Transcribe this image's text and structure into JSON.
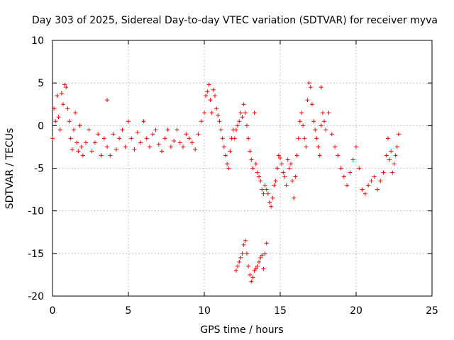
{
  "chart_data": {
    "type": "scatter",
    "title": "Day 303 of 2025, Sidereal Day-to-day VTEC variation (SDTVAR) for receiver myva",
    "xlabel": "GPS time / hours",
    "ylabel": "SDTVAR / TECUs",
    "xlim": [
      0,
      25
    ],
    "ylim": [
      -20,
      10
    ],
    "xticks": [
      0,
      5,
      10,
      15,
      20,
      25
    ],
    "xtick_labels": [
      "0",
      "5",
      "10",
      "15",
      "20",
      "25"
    ],
    "yticks": [
      10,
      5,
      0,
      -5,
      -10,
      -15,
      -20
    ],
    "ytick_labels": [
      "10",
      "5",
      "0",
      "-5",
      "-10",
      "-15",
      "-20"
    ],
    "grid": true,
    "marker": "+",
    "color": "#ff0000",
    "series": [
      {
        "name": "SDTVAR",
        "x": [
          0.0,
          0.1,
          0.2,
          0.3,
          0.4,
          0.5,
          0.6,
          0.7,
          0.8,
          0.9,
          1.0,
          1.1,
          1.2,
          1.3,
          1.4,
          1.5,
          1.6,
          1.7,
          1.8,
          1.9,
          2.0,
          2.2,
          2.4,
          2.6,
          2.8,
          3.0,
          3.2,
          3.4,
          3.6,
          3.8,
          4.0,
          4.2,
          4.4,
          4.6,
          4.8,
          5.0,
          5.2,
          5.4,
          5.6,
          5.8,
          6.0,
          6.2,
          6.4,
          6.6,
          6.8,
          7.0,
          7.2,
          7.4,
          7.6,
          7.8,
          8.0,
          8.2,
          8.4,
          8.6,
          8.8,
          9.0,
          9.2,
          9.4,
          9.6,
          9.8,
          10.0,
          10.1,
          10.2,
          10.3,
          10.4,
          10.5,
          10.6,
          10.7,
          10.8,
          10.9,
          11.0,
          11.1,
          11.2,
          11.3,
          11.4,
          11.5,
          11.6,
          11.7,
          11.8,
          11.9,
          12.0,
          12.1,
          12.2,
          12.3,
          12.4,
          12.5,
          12.6,
          12.7,
          12.8,
          12.9,
          13.0,
          13.1,
          13.2,
          13.3,
          13.4,
          13.5,
          13.6,
          13.7,
          13.8,
          13.9,
          14.0,
          14.1,
          14.2,
          14.3,
          14.4,
          14.5,
          14.6,
          14.7,
          14.8,
          14.9,
          15.0,
          15.1,
          15.2,
          15.3,
          15.4,
          15.5,
          15.6,
          15.7,
          15.8,
          15.9,
          16.0,
          16.1,
          16.2,
          16.3,
          16.4,
          16.5,
          16.6,
          16.7,
          16.8,
          16.9,
          17.0,
          17.1,
          17.2,
          17.3,
          17.4,
          17.5,
          17.6,
          17.7,
          17.8,
          17.9,
          18.0,
          18.2,
          18.4,
          18.6,
          18.8,
          19.0,
          19.2,
          19.4,
          19.6,
          19.8,
          20.0,
          20.2,
          20.4,
          20.6,
          20.8,
          21.0,
          21.2,
          21.4,
          21.6,
          21.8,
          22.0,
          22.1,
          22.2,
          22.3,
          22.4,
          22.5,
          22.6,
          22.7,
          22.8,
          12.1,
          12.2,
          12.3,
          12.4,
          12.5,
          12.6,
          12.7,
          12.8,
          12.9,
          13.0,
          13.1,
          13.2,
          13.3,
          13.4,
          13.5,
          13.6,
          13.7,
          13.8,
          13.9,
          14.0,
          14.1,
          3.6,
          17.7
        ],
        "y": [
          -1.5,
          2.0,
          0.5,
          3.5,
          1.0,
          -0.5,
          3.8,
          2.5,
          4.8,
          4.5,
          2.0,
          0.5,
          -1.5,
          -2.8,
          -0.5,
          1.5,
          -2.0,
          -3.0,
          0.0,
          -2.5,
          -3.5,
          -2.0,
          -0.5,
          -3.0,
          -2.0,
          -1.0,
          -3.5,
          -1.5,
          -2.5,
          -3.5,
          -1.0,
          -2.8,
          -1.5,
          -0.5,
          -2.5,
          0.5,
          -1.5,
          -2.8,
          -0.8,
          -2.0,
          0.5,
          -1.5,
          -2.5,
          -1.0,
          -0.5,
          -2.2,
          -3.0,
          -1.5,
          -0.5,
          -2.5,
          -1.8,
          -0.5,
          -2.0,
          -2.5,
          -1.0,
          -1.5,
          -2.0,
          -2.8,
          -1.0,
          0.5,
          1.5,
          3.5,
          4.0,
          4.8,
          3.0,
          1.5,
          4.2,
          3.5,
          2.0,
          1.2,
          0.5,
          -0.5,
          -1.5,
          -2.5,
          -3.5,
          -4.5,
          -5.0,
          -3.0,
          -1.5,
          -0.5,
          -1.5,
          -0.5,
          0.0,
          0.5,
          1.5,
          1.0,
          2.5,
          1.5,
          0.0,
          -1.5,
          -3.0,
          -4.0,
          -5.0,
          1.5,
          -4.5,
          -5.5,
          -6.0,
          -6.5,
          -7.5,
          -8.0,
          -7.0,
          -7.5,
          -8.0,
          -9.0,
          -9.5,
          -8.5,
          -7.0,
          -6.5,
          -5.0,
          -3.5,
          -3.8,
          -4.5,
          -5.5,
          -6.0,
          -7.0,
          -4.0,
          -5.0,
          -4.5,
          -6.5,
          -8.5,
          -6.0,
          -3.5,
          -1.5,
          0.5,
          1.5,
          0.0,
          -1.5,
          -2.5,
          3.0,
          5.0,
          4.5,
          2.5,
          0.5,
          -0.5,
          -1.5,
          -2.5,
          -3.5,
          0.0,
          1.5,
          0.5,
          -0.5,
          1.5,
          -1.0,
          -2.5,
          -3.5,
          -5.0,
          -6.0,
          -7.0,
          -5.5,
          -4.0,
          -2.5,
          -5.0,
          -7.5,
          -8.0,
          -7.0,
          -6.5,
          -6.0,
          -7.5,
          -6.5,
          -5.5,
          -3.5,
          -1.5,
          -4.0,
          -3.0,
          -5.5,
          -4.5,
          -3.5,
          -2.5,
          -1.0,
          -17.0,
          -16.5,
          -16.0,
          -15.5,
          -15.0,
          -14.0,
          -13.5,
          -15.0,
          -16.5,
          -17.5,
          -18.3,
          -17.8,
          -17.0,
          -16.8,
          -16.5,
          -16.0,
          -15.5,
          -15.2,
          -16.8,
          -15.0,
          -13.8,
          3.0,
          4.5
        ]
      }
    ]
  }
}
